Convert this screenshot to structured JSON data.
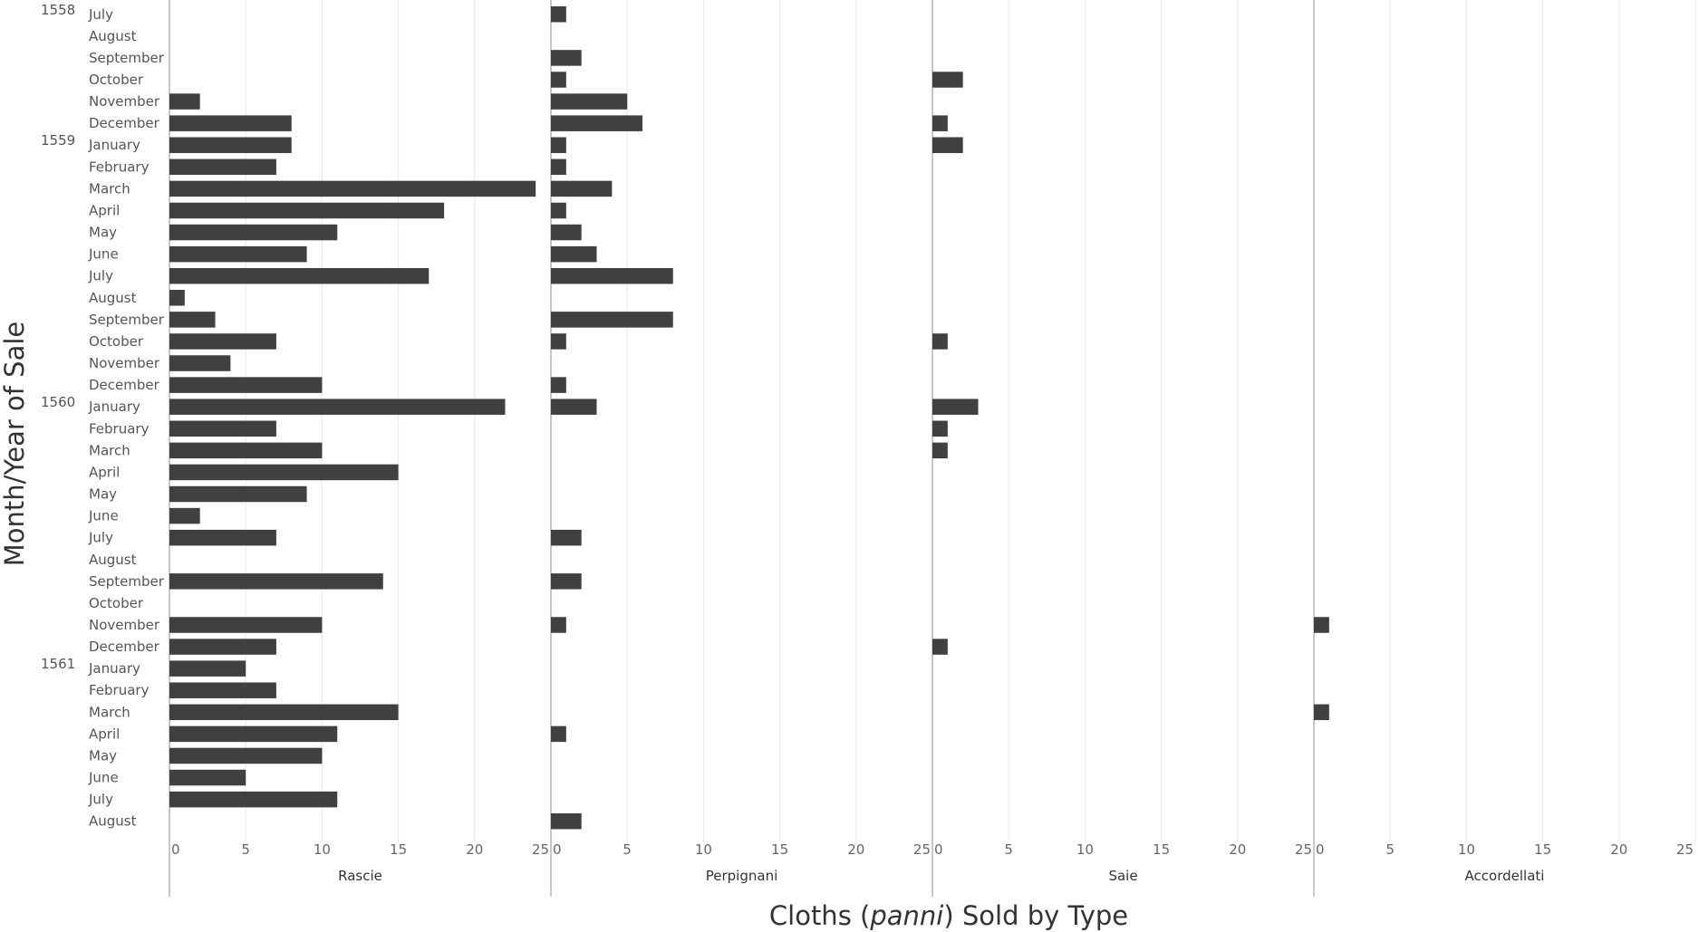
{
  "chart_data": {
    "type": "bar",
    "orientation": "horizontal",
    "ylabel": "Month/Year of Sale",
    "xlabel_parts": [
      "Cloths (",
      "panni",
      ") Sold by Type"
    ],
    "xlim": [
      0,
      25
    ],
    "x_ticks": [
      0,
      5,
      10,
      15,
      20,
      25
    ],
    "grid": true,
    "bar_color": "#404040",
    "rows": [
      {
        "year": "1558",
        "month": "July"
      },
      {
        "year": "",
        "month": "August"
      },
      {
        "year": "",
        "month": "September"
      },
      {
        "year": "",
        "month": "October"
      },
      {
        "year": "",
        "month": "November"
      },
      {
        "year": "",
        "month": "December"
      },
      {
        "year": "1559",
        "month": "January"
      },
      {
        "year": "",
        "month": "February"
      },
      {
        "year": "",
        "month": "March"
      },
      {
        "year": "",
        "month": "April"
      },
      {
        "year": "",
        "month": "May"
      },
      {
        "year": "",
        "month": "June"
      },
      {
        "year": "",
        "month": "July"
      },
      {
        "year": "",
        "month": "August"
      },
      {
        "year": "",
        "month": "September"
      },
      {
        "year": "",
        "month": "October"
      },
      {
        "year": "",
        "month": "November"
      },
      {
        "year": "",
        "month": "December"
      },
      {
        "year": "1560",
        "month": "January"
      },
      {
        "year": "",
        "month": "February"
      },
      {
        "year": "",
        "month": "March"
      },
      {
        "year": "",
        "month": "April"
      },
      {
        "year": "",
        "month": "May"
      },
      {
        "year": "",
        "month": "June"
      },
      {
        "year": "",
        "month": "July"
      },
      {
        "year": "",
        "month": "August"
      },
      {
        "year": "",
        "month": "September"
      },
      {
        "year": "",
        "month": "October"
      },
      {
        "year": "",
        "month": "November"
      },
      {
        "year": "",
        "month": "December"
      },
      {
        "year": "1561",
        "month": "January"
      },
      {
        "year": "",
        "month": "February"
      },
      {
        "year": "",
        "month": "March"
      },
      {
        "year": "",
        "month": "April"
      },
      {
        "year": "",
        "month": "May"
      },
      {
        "year": "",
        "month": "June"
      },
      {
        "year": "",
        "month": "July"
      },
      {
        "year": "",
        "month": "August"
      }
    ],
    "series": [
      {
        "name": "Rascie",
        "values": [
          0,
          0,
          0,
          0,
          2,
          8,
          8,
          7,
          24,
          18,
          11,
          9,
          17,
          1,
          3,
          7,
          4,
          10,
          22,
          7,
          10,
          15,
          9,
          2,
          7,
          0,
          14,
          0,
          10,
          7,
          5,
          7,
          15,
          11,
          10,
          5,
          11,
          0
        ]
      },
      {
        "name": "Perpignani",
        "values": [
          1,
          0,
          2,
          1,
          5,
          6,
          1,
          1,
          4,
          1,
          2,
          3,
          8,
          0,
          8,
          1,
          0,
          1,
          3,
          0,
          0,
          0,
          0,
          0,
          2,
          0,
          2,
          0,
          1,
          0,
          0,
          0,
          0,
          1,
          0,
          0,
          0,
          2
        ]
      },
      {
        "name": "Saie",
        "values": [
          0,
          0,
          0,
          2,
          0,
          1,
          2,
          0,
          0,
          0,
          0,
          0,
          0,
          0,
          0,
          1,
          0,
          0,
          3,
          1,
          1,
          0,
          0,
          0,
          0,
          0,
          0,
          0,
          0,
          1,
          0,
          0,
          0,
          0,
          0,
          0,
          0,
          0
        ]
      },
      {
        "name": "Accordellati",
        "values": [
          0,
          0,
          0,
          0,
          0,
          0,
          0,
          0,
          0,
          0,
          0,
          0,
          0,
          0,
          0,
          0,
          0,
          0,
          0,
          0,
          0,
          0,
          0,
          0,
          0,
          0,
          0,
          0,
          1,
          0,
          0,
          0,
          1,
          0,
          0,
          0,
          0,
          0
        ]
      }
    ]
  }
}
